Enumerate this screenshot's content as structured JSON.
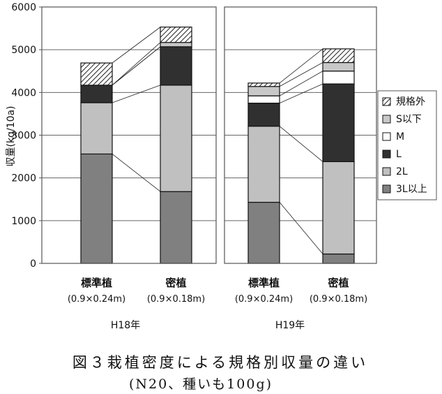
{
  "chart_data": {
    "type": "bar",
    "stacked": true,
    "ylabel": "収量(kg/10a)",
    "ylim": [
      0,
      6000
    ],
    "yticks": [
      0,
      1000,
      2000,
      3000,
      4000,
      5000,
      6000
    ],
    "grid": true,
    "legend_position": "right",
    "series": [
      {
        "name": "3L以上",
        "color": "#808080",
        "pattern": "solid"
      },
      {
        "name": "2L",
        "color": "#c0c0c0",
        "pattern": "solid"
      },
      {
        "name": "L",
        "color": "#303030",
        "pattern": "solid"
      },
      {
        "name": "M",
        "color": "#ffffff",
        "pattern": "solid"
      },
      {
        "name": "S以下",
        "color": "#c8c8c8",
        "pattern": "solid"
      },
      {
        "name": "規格外",
        "color": "#ffffff",
        "pattern": "hatch"
      }
    ],
    "panels": [
      {
        "group_label": "H18年",
        "bars": [
          {
            "label": "標準植",
            "sublabel": "(0.9×0.24m)",
            "values": [
              2560,
              1200,
              410,
              0,
              0,
              520
            ]
          },
          {
            "label": "密植",
            "sublabel": "(0.9×0.18m)",
            "values": [
              1680,
              2490,
              900,
              0,
              100,
              360
            ]
          }
        ]
      },
      {
        "group_label": "H19年",
        "bars": [
          {
            "label": "標準植",
            "sublabel": "(0.9×0.24m)",
            "values": [
              1430,
              1780,
              540,
              170,
              220,
              80
            ]
          },
          {
            "label": "密植",
            "sublabel": "(0.9×0.18m)",
            "values": [
              220,
              2160,
              1820,
              300,
              200,
              320
            ]
          }
        ]
      }
    ]
  },
  "caption": {
    "line1": "図３栽植密度による規格別収量の違い",
    "line2": "(N20、種いも100g)"
  }
}
